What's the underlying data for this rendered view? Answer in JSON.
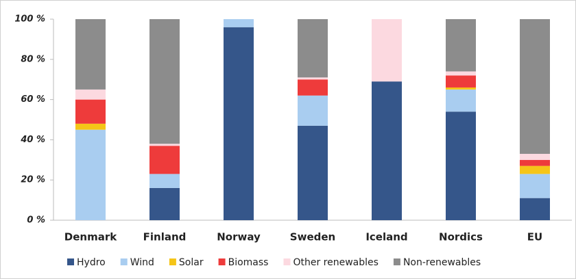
{
  "chart_data": {
    "type": "stacked_bar",
    "categories": [
      "Denmark",
      "Finland",
      "Norway",
      "Sweden",
      "Iceland",
      "Nordics",
      "EU"
    ],
    "series": [
      {
        "name": "Hydro",
        "color": "#35568a",
        "values": [
          0,
          16,
          96,
          47,
          69,
          54,
          11
        ]
      },
      {
        "name": "Wind",
        "color": "#a9cdf0",
        "values": [
          45,
          7,
          4,
          15,
          0,
          11,
          12
        ]
      },
      {
        "name": "Solar",
        "color": "#f5c518",
        "values": [
          3,
          0,
          0,
          0,
          0,
          1,
          4
        ]
      },
      {
        "name": "Biomass",
        "color": "#ee3b3b",
        "values": [
          12,
          14,
          0,
          8,
          0,
          6,
          3
        ]
      },
      {
        "name": "Other renewables",
        "color": "#fcd9e0",
        "values": [
          5,
          1,
          0,
          1,
          31,
          2,
          3
        ]
      },
      {
        "name": "Non-renewables",
        "color": "#8c8c8c",
        "values": [
          35,
          62,
          0,
          29,
          0,
          26,
          67
        ]
      }
    ],
    "ylim": [
      0,
      100
    ],
    "yticks": [
      {
        "value": 0,
        "label": "0 %"
      },
      {
        "value": 20,
        "label": "20 %"
      },
      {
        "value": 40,
        "label": "40 %"
      },
      {
        "value": 60,
        "label": "60 %"
      },
      {
        "value": 80,
        "label": "80 %"
      },
      {
        "value": 100,
        "label": "100 %"
      }
    ],
    "grid": false,
    "legend": "bottom"
  }
}
